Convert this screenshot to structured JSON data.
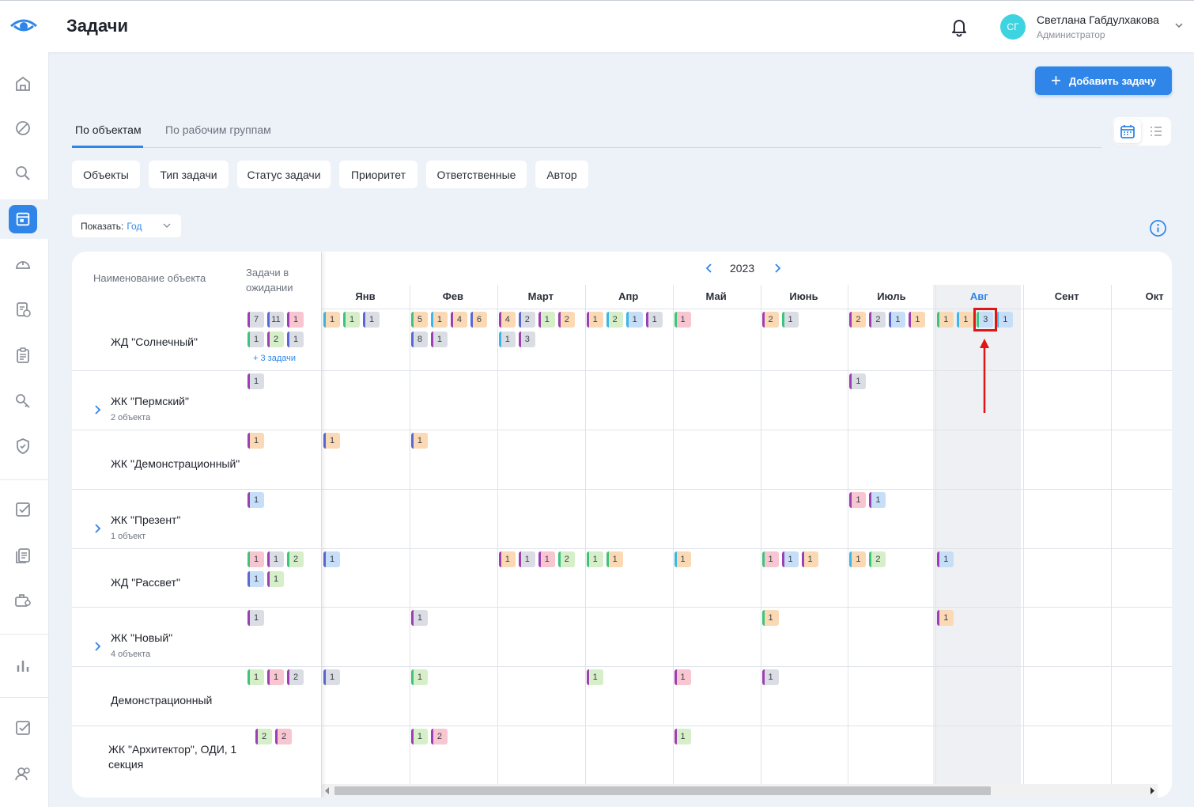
{
  "app": {
    "title": "Задачи",
    "user": {
      "initials": "СГ",
      "name": "Светлана Габдулхакова",
      "role": "Администратор",
      "avatar_color": "#3dd3e0"
    },
    "accent": "#2f86e8"
  },
  "toolbar": {
    "add_task_label": "Добавить задачу"
  },
  "tabs": [
    {
      "label": "По объектам",
      "active": true
    },
    {
      "label": "По рабочим группам",
      "active": false
    }
  ],
  "view_toggle": {
    "calendar_icon": "calendar-icon",
    "list_icon": "list-icon",
    "selected": "calendar"
  },
  "filters": [
    "Объекты",
    "Тип задачи",
    "Статус задачи",
    "Приоритет",
    "Ответственные",
    "Автор"
  ],
  "show": {
    "label": "Показать:",
    "value": "Год"
  },
  "sidebar": {
    "icons": [
      "home-icon",
      "ban-icon",
      "search-icon",
      "tasks-icon",
      "helmet-icon",
      "checklist-doc-icon",
      "clipboard-icon",
      "key-icon",
      "shield-icon",
      "checkbox-icon",
      "documents-icon",
      "briefcase-user-icon",
      "bar-chart-icon",
      "checkbox-icon",
      "users-icon"
    ],
    "active_index": 3
  },
  "calendar": {
    "header_name": "Наименование объекта",
    "header_waiting": "Задачи в ожидании",
    "year": "2023",
    "months": [
      "Янв",
      "Фев",
      "Март",
      "Апр",
      "Май",
      "Июнь",
      "Июль",
      "Авг",
      "Сент",
      "Окт"
    ],
    "current_month": "Авг",
    "rows": [
      {
        "name": "ЖД \"Солнечный\"",
        "sub": "",
        "expandable": false,
        "more": "+ 3 задачи",
        "waiting": [
          [
            "pur",
            "gray",
            "7"
          ],
          [
            "blu",
            "gray",
            "11"
          ],
          [
            "pur",
            "pink",
            "1"
          ],
          [
            "grn",
            "gray",
            "1"
          ],
          [
            "pur",
            "grn",
            "2"
          ],
          [
            "blu",
            "gray",
            "1"
          ]
        ],
        "months": [
          [
            [
              "cya",
              "org",
              "1"
            ],
            [
              "grn",
              "grn",
              "1"
            ],
            [
              "blu",
              "gray",
              "1"
            ]
          ],
          [
            [
              "grn",
              "org",
              "5"
            ],
            [
              "cya",
              "org",
              "1"
            ],
            [
              "pur",
              "org",
              "4"
            ],
            [
              "blu",
              "org",
              "6"
            ],
            [
              "blu",
              "gray",
              "8"
            ],
            [
              "pur",
              "gray",
              "1"
            ]
          ],
          [
            [
              "pur",
              "org",
              "4"
            ],
            [
              "blu",
              "gray",
              "2"
            ],
            [
              "pur",
              "grn",
              "1"
            ],
            [
              "pur",
              "org",
              "2"
            ],
            [
              "cya",
              "gray",
              "1"
            ],
            [
              "pur",
              "gray",
              "3"
            ]
          ],
          [
            [
              "pur",
              "org",
              "1"
            ],
            [
              "cya",
              "grn",
              "2"
            ],
            [
              "cya",
              "blu",
              "1"
            ],
            [
              "pur",
              "gray",
              "1"
            ]
          ],
          [
            [
              "grn",
              "pink",
              "1"
            ]
          ],
          [
            [
              "pur",
              "org",
              "2"
            ],
            [
              "grn",
              "gray",
              "1"
            ]
          ],
          [
            [
              "pur",
              "org",
              "2"
            ],
            [
              "pur",
              "gray",
              "2"
            ],
            [
              "blu",
              "blu",
              "1"
            ],
            [
              "pur",
              "org",
              "1"
            ]
          ],
          [
            [
              "grn",
              "org",
              "1"
            ],
            [
              "cya",
              "org",
              "1"
            ],
            [
              "grn",
              "blu",
              "3"
            ],
            [
              "cya",
              "blu",
              "1"
            ]
          ],
          [],
          []
        ]
      },
      {
        "name": "ЖК \"Пермский\"",
        "sub": "2 объекта",
        "expandable": true,
        "more": "",
        "waiting": [
          [
            "pur",
            "gray",
            "1"
          ]
        ],
        "months": [
          [],
          [],
          [],
          [],
          [],
          [],
          [
            [
              "pur",
              "gray",
              "1"
            ]
          ],
          [],
          [],
          []
        ]
      },
      {
        "name": "ЖК \"Демонстрационный\"",
        "sub": "",
        "expandable": false,
        "more": "",
        "waiting": [
          [
            "pur",
            "org",
            "1"
          ]
        ],
        "months": [
          [
            [
              "blu",
              "org",
              "1"
            ]
          ],
          [
            [
              "blu",
              "org",
              "1"
            ]
          ],
          [],
          [],
          [],
          [],
          [],
          [],
          [],
          []
        ]
      },
      {
        "name": "ЖК \"Презент\"",
        "sub": "1 объект",
        "expandable": true,
        "more": "",
        "waiting": [
          [
            "pur",
            "blu",
            "1"
          ]
        ],
        "months": [
          [],
          [],
          [],
          [],
          [],
          [],
          [
            [
              "pur",
              "pink",
              "1"
            ],
            [
              "pur",
              "blu",
              "1"
            ]
          ],
          [],
          [],
          []
        ]
      },
      {
        "name": "ЖД \"Рассвет\"",
        "sub": "",
        "expandable": false,
        "more": "",
        "waiting": [
          [
            "grn",
            "pink",
            "1"
          ],
          [
            "pur",
            "gray",
            "1"
          ],
          [
            "grn",
            "grn",
            "2"
          ],
          [
            "blu",
            "blu",
            "1"
          ],
          [
            "pur",
            "grn",
            "1"
          ]
        ],
        "months": [
          [
            [
              "blu",
              "blu",
              "1"
            ]
          ],
          [],
          [
            [
              "pur",
              "org",
              "1"
            ],
            [
              "pur",
              "gray",
              "1"
            ],
            [
              "pur",
              "pink",
              "1"
            ],
            [
              "grn",
              "grn",
              "2"
            ]
          ],
          [
            [
              "grn",
              "grn",
              "1"
            ],
            [
              "grn",
              "org",
              "1"
            ]
          ],
          [
            [
              "cya",
              "org",
              "1"
            ]
          ],
          [
            [
              "grn",
              "pink",
              "1"
            ],
            [
              "pur",
              "blu",
              "1"
            ],
            [
              "pur",
              "org",
              "1"
            ]
          ],
          [
            [
              "cya",
              "org",
              "1"
            ],
            [
              "grn",
              "grn",
              "2"
            ]
          ],
          [
            [
              "pur",
              "blu",
              "1"
            ]
          ],
          [],
          []
        ]
      },
      {
        "name": "ЖК \"Новый\"",
        "sub": "4 объекта",
        "expandable": true,
        "more": "",
        "waiting": [
          [
            "pur",
            "gray",
            "1"
          ]
        ],
        "months": [
          [],
          [
            [
              "pur",
              "gray",
              "1"
            ]
          ],
          [],
          [],
          [],
          [
            [
              "grn",
              "org",
              "1"
            ]
          ],
          [],
          [
            [
              "pur",
              "org",
              "1"
            ]
          ],
          [],
          []
        ]
      },
      {
        "name": "Демонстрационный",
        "sub": "",
        "expandable": false,
        "more": "",
        "waiting": [
          [
            "grn",
            "grn",
            "1"
          ],
          [
            "pur",
            "pink",
            "1"
          ],
          [
            "pur",
            "gray",
            "2"
          ]
        ],
        "months": [
          [
            [
              "blu",
              "gray",
              "1"
            ]
          ],
          [
            [
              "grn",
              "grn",
              "1"
            ]
          ],
          [],
          [
            [
              "pur",
              "grn",
              "1"
            ]
          ],
          [
            [
              "pur",
              "pink",
              "1"
            ]
          ],
          [
            [
              "pur",
              "gray",
              "1"
            ]
          ],
          [],
          [],
          [],
          []
        ]
      },
      {
        "name": "ЖК \"Архитектор\", ОДИ, 1 секция",
        "sub": "",
        "expandable": false,
        "more": "",
        "waiting": [
          [
            "pur",
            "grn",
            "2"
          ],
          [
            "pur",
            "pink",
            "2"
          ]
        ],
        "months": [
          [],
          [
            [
              "pur",
              "grn",
              "1"
            ],
            [
              "pur",
              "pink",
              "2"
            ]
          ],
          [],
          [],
          [
            [
              "pur",
              "grn",
              "1"
            ]
          ],
          [],
          [],
          [],
          [],
          []
        ]
      }
    ]
  }
}
